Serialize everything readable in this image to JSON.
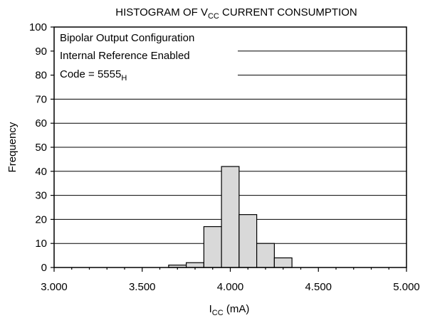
{
  "chart_data": {
    "type": "bar",
    "title": {
      "prefix": "HISTOGRAM OF V",
      "sub": "CC",
      "suffix": " CURRENT CONSUMPTION"
    },
    "xlabel": {
      "base": "I",
      "sub": "CC",
      "suffix": " (mA)"
    },
    "ylabel": "Frequency",
    "xlim": [
      3.0,
      5.0
    ],
    "ylim": [
      0,
      100
    ],
    "x_ticks": [
      {
        "value": 3.0,
        "label": "3.000"
      },
      {
        "value": 3.5,
        "label": "3.500"
      },
      {
        "value": 4.0,
        "label": "4.000"
      },
      {
        "value": 4.5,
        "label": "4.500"
      },
      {
        "value": 5.0,
        "label": "5.000"
      }
    ],
    "y_ticks": [
      0,
      10,
      20,
      30,
      40,
      50,
      60,
      70,
      80,
      90,
      100
    ],
    "grid": "horizontal",
    "bin_width": 0.1,
    "bins": [
      {
        "x0": 3.65,
        "value": 1
      },
      {
        "x0": 3.75,
        "value": 2
      },
      {
        "x0": 3.85,
        "value": 17
      },
      {
        "x0": 3.95,
        "value": 42
      },
      {
        "x0": 4.05,
        "value": 22
      },
      {
        "x0": 4.15,
        "value": 10
      },
      {
        "x0": 4.25,
        "value": 4
      }
    ],
    "bar_color": "#d9d9d9",
    "annotations": [
      {
        "text": "Bipolar Output Configuration"
      },
      {
        "text": "Internal Reference Enabled"
      },
      {
        "text": "Code = 5555",
        "sub": "H"
      }
    ]
  }
}
